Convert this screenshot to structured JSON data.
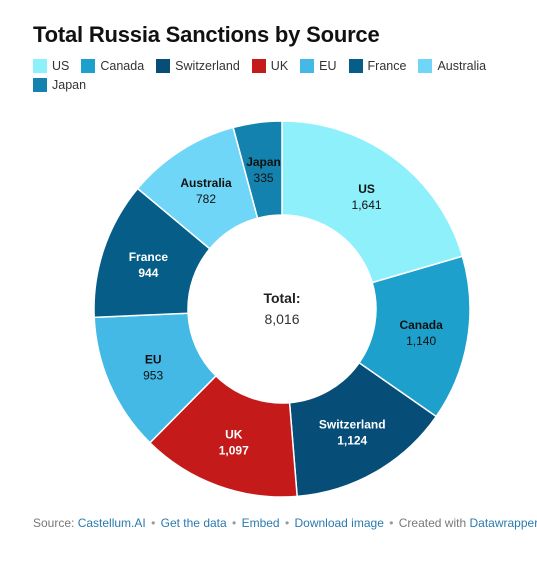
{
  "chart_title": "Total Russia Sanctions by Source",
  "chart_data": {
    "type": "pie",
    "variant": "donut",
    "title": "Total Russia Sanctions by Source",
    "categories": [
      "US",
      "Canada",
      "Switzerland",
      "UK",
      "EU",
      "France",
      "Australia",
      "Japan"
    ],
    "values": [
      1641,
      1140,
      1124,
      1097,
      953,
      944,
      782,
      335
    ],
    "value_labels": [
      "1,641",
      "1,140",
      "1,124",
      "1,097",
      "953",
      "944",
      "782",
      "335"
    ],
    "colors": [
      "#8df0fb",
      "#1da0cc",
      "#064e77",
      "#c41a1a",
      "#44b9e6",
      "#065d87",
      "#70d6f8",
      "#1382ae"
    ],
    "label_colors": [
      "#111111",
      "#111111",
      "#ffffff",
      "#ffffff",
      "#111111",
      "#ffffff",
      "#111111",
      "#111111"
    ],
    "total_label": "Total:",
    "total_value": "8,016",
    "legend_position": "top-left"
  },
  "footer": {
    "source_prefix": "Source:",
    "source_name": "Castellum.AI",
    "get_data": "Get the data",
    "embed": "Embed",
    "download": "Download image",
    "created_prefix": "Created with",
    "tool": "Datawrapper"
  }
}
